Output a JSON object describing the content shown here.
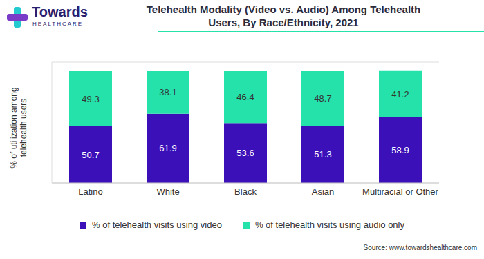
{
  "chart_data": {
    "type": "bar",
    "title": "Telehealth Modality (Video vs. Audio) Among Telehealth Users, By Race/Ethnicity, 2021",
    "ylabel": "% of utilization among telehealth users",
    "annotations": [
      "Towards",
      "HEALTHCARE",
      "Source: www.towardshealthcare.com"
    ],
    "categories": [
      "Latino",
      "White",
      "Black",
      "Asian",
      "Multiracial or Other"
    ],
    "series": [
      {
        "name": "% of telehealth visits using video",
        "color": "#3c10b8",
        "values": [
          50.7,
          61.9,
          53.6,
          51.3,
          58.9
        ]
      },
      {
        "name": "% of telehealth visits using audio only",
        "color": "#25e2aa",
        "values": [
          49.3,
          38.1,
          46.4,
          48.7,
          41.2
        ]
      }
    ],
    "ylim": [
      0,
      108
    ],
    "yticks": [
      0,
      13.5,
      27,
      40.5,
      54,
      67.5,
      81,
      94.5,
      108
    ],
    "stacked": true,
    "data_labels": true,
    "grid": true,
    "tick_labels": "x"
  }
}
